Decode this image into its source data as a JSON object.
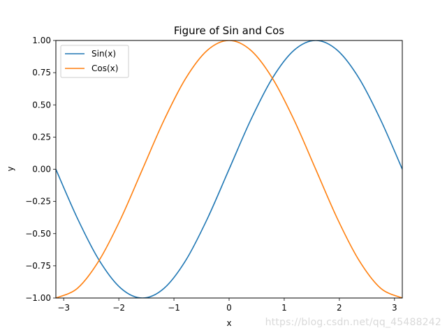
{
  "chart_data": {
    "type": "line",
    "title": "Figure of Sin and Cos",
    "xlabel": "x",
    "ylabel": "y",
    "xlim": [
      -3.14159,
      3.14159
    ],
    "ylim": [
      -1.0,
      1.0
    ],
    "xticks": [
      -3,
      -2,
      -1,
      0,
      1,
      2,
      3
    ],
    "xtick_labels": [
      "−3",
      "−2",
      "−1",
      "0",
      "1",
      "2",
      "3"
    ],
    "yticks": [
      -1.0,
      -0.75,
      -0.5,
      -0.25,
      0.0,
      0.25,
      0.5,
      0.75,
      1.0
    ],
    "ytick_labels": [
      "−1.00",
      "−0.75",
      "−0.50",
      "−0.25",
      "0.00",
      "0.25",
      "0.50",
      "0.75",
      "1.00"
    ],
    "grid": false,
    "legend_position": "top-left",
    "series": [
      {
        "name": "Sin(x)",
        "color": "#1f77b4",
        "x": [
          -3.142,
          -2.749,
          -2.356,
          -1.963,
          -1.571,
          -1.178,
          -0.785,
          -0.393,
          0.0,
          0.393,
          0.785,
          1.178,
          1.571,
          1.963,
          2.356,
          2.749,
          3.142
        ],
        "y": [
          0.0,
          -0.383,
          -0.707,
          -0.924,
          -1.0,
          -0.924,
          -0.707,
          -0.383,
          0.0,
          0.383,
          0.707,
          0.924,
          1.0,
          0.924,
          0.707,
          0.383,
          0.0
        ]
      },
      {
        "name": "Cos(x)",
        "color": "#ff7f0e",
        "x": [
          -3.142,
          -2.749,
          -2.356,
          -1.963,
          -1.571,
          -1.178,
          -0.785,
          -0.393,
          0.0,
          0.393,
          0.785,
          1.178,
          1.571,
          1.963,
          2.356,
          2.749,
          3.142
        ],
        "y": [
          -1.0,
          -0.924,
          -0.707,
          -0.383,
          0.0,
          0.383,
          0.707,
          0.924,
          1.0,
          0.924,
          0.707,
          0.383,
          0.0,
          -0.383,
          -0.707,
          -0.924,
          -1.0
        ]
      }
    ]
  },
  "watermark": "https://blog.csdn.net/qq_45488242"
}
